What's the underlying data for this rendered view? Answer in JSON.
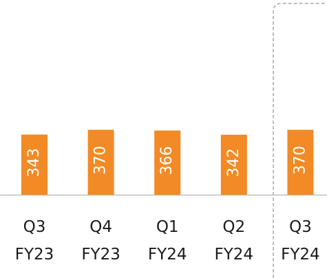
{
  "chart_data": {
    "type": "bar",
    "categories": [
      [
        "Q3",
        "FY23"
      ],
      [
        "Q4",
        "FY23"
      ],
      [
        "Q1",
        "FY24"
      ],
      [
        "Q2",
        "FY24"
      ],
      [
        "Q3",
        "FY24"
      ]
    ],
    "values": [
      343,
      370,
      366,
      342,
      370
    ],
    "color": "#f28a25"
  }
}
